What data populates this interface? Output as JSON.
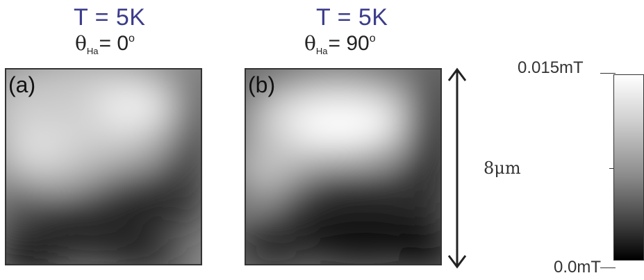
{
  "panels": [
    {
      "label": "(a)",
      "temperature": "T = 5K",
      "angle_symbol": "θ",
      "angle_subscript": "Ha",
      "angle_value": "= 0",
      "angle_unit": "o"
    },
    {
      "label": "(b)",
      "temperature": "T = 5K",
      "angle_symbol": "θ",
      "angle_subscript": "Ha",
      "angle_value": "= 90",
      "angle_unit": "o"
    }
  ],
  "scale_bar": {
    "label": "8μm"
  },
  "colorbar": {
    "max_label": "0.015mT",
    "min_label": "0.0mT",
    "colors": [
      "#ffffff",
      "#000000"
    ]
  }
}
